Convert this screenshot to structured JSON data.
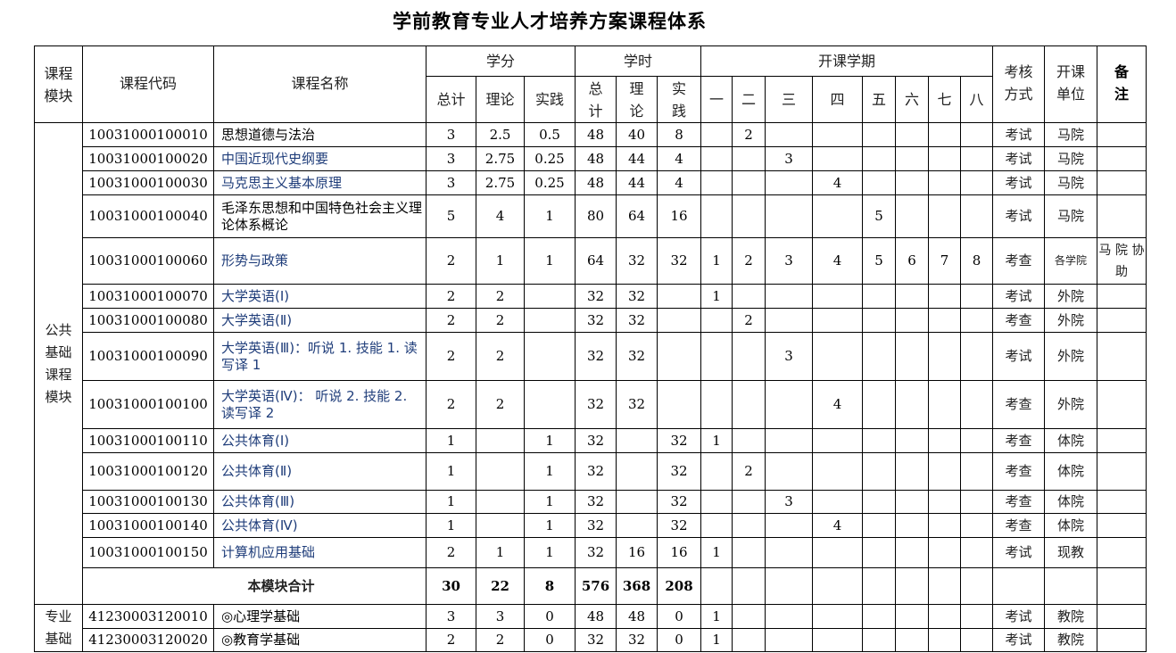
{
  "title": "学前教育专业人才培养方案课程体系",
  "header": {
    "module": "课程模块",
    "code": "课程代码",
    "name": "课程名称",
    "credits": "学分",
    "hours": "学时",
    "semester": "开课学期",
    "exam": "考核方式",
    "unit": "开课单位",
    "note": "备注",
    "credit_sub": [
      "总计",
      "理论",
      "实践"
    ],
    "hour_sub": [
      "总计",
      "理论",
      "实践"
    ],
    "semesters": [
      "一",
      "二",
      "三",
      "四",
      "五",
      "六",
      "七",
      "八"
    ]
  },
  "modules": [
    {
      "label": "公共基础课程模块",
      "rows": [
        {
          "code": "10031000100010",
          "name": "思想道德与法治",
          "credits": [
            "3",
            "2.5",
            "0.5"
          ],
          "hours": [
            "48",
            "40",
            "8"
          ],
          "sem": [
            "",
            "2",
            "",
            "",
            "",
            "",
            "",
            ""
          ],
          "exam": "考试",
          "unit": "马院",
          "note": ""
        },
        {
          "code": "10031000100020",
          "name": "中国近现代史纲要",
          "credits": [
            "3",
            "2.75",
            "0.25"
          ],
          "hours": [
            "48",
            "44",
            "4"
          ],
          "sem": [
            "",
            "",
            "3",
            "",
            "",
            "",
            "",
            ""
          ],
          "exam": "考试",
          "unit": "马院",
          "note": ""
        },
        {
          "code": "10031000100030",
          "name": "马克思主义基本原理",
          "credits": [
            "3",
            "2.75",
            "0.25"
          ],
          "hours": [
            "48",
            "44",
            "4"
          ],
          "sem": [
            "",
            "",
            "",
            "4",
            "",
            "",
            "",
            ""
          ],
          "exam": "考试",
          "unit": "马院",
          "note": ""
        },
        {
          "code": "10031000100040",
          "name": "毛泽东思想和中国特色社会主义理论体系概论",
          "credits": [
            "5",
            "4",
            "1"
          ],
          "hours": [
            "80",
            "64",
            "16"
          ],
          "sem": [
            "",
            "",
            "",
            "",
            "5",
            "",
            "",
            ""
          ],
          "exam": "考试",
          "unit": "马院",
          "note": ""
        },
        {
          "code": "10031000100060",
          "name": "形势与政策",
          "credits": [
            "2",
            "1",
            "1"
          ],
          "hours": [
            "64",
            "32",
            "32"
          ],
          "sem": [
            "1",
            "2",
            "3",
            "4",
            "5",
            "6",
            "7",
            "8"
          ],
          "exam": "考查",
          "unit": "各学院",
          "note": "马 院 协助"
        },
        {
          "code": "10031000100070",
          "name": "大学英语(Ⅰ)",
          "credits": [
            "2",
            "2",
            ""
          ],
          "hours": [
            "32",
            "32",
            ""
          ],
          "sem": [
            "1",
            "",
            "",
            "",
            "",
            "",
            "",
            ""
          ],
          "exam": "考试",
          "unit": "外院",
          "note": ""
        },
        {
          "code": "10031000100080",
          "name": "大学英语(Ⅱ)",
          "credits": [
            "2",
            "2",
            ""
          ],
          "hours": [
            "32",
            "32",
            ""
          ],
          "sem": [
            "",
            "2",
            "",
            "",
            "",
            "",
            "",
            ""
          ],
          "exam": "考查",
          "unit": "外院",
          "note": ""
        },
        {
          "code": "10031000100090",
          "name": "大学英语(Ⅲ)：听说 1. 技能 1. 读写译 1",
          "credits": [
            "2",
            "2",
            ""
          ],
          "hours": [
            "32",
            "32",
            ""
          ],
          "sem": [
            "",
            "",
            "3",
            "",
            "",
            "",
            "",
            ""
          ],
          "exam": "考试",
          "unit": "外院",
          "note": ""
        },
        {
          "code": "10031000100100",
          "name": "大学英语(Ⅳ)： 听说 2. 技能 2. 读写译 2",
          "credits": [
            "2",
            "2",
            ""
          ],
          "hours": [
            "32",
            "32",
            ""
          ],
          "sem": [
            "",
            "",
            "",
            "4",
            "",
            "",
            "",
            ""
          ],
          "exam": "考查",
          "unit": "外院",
          "note": ""
        },
        {
          "code": "10031000100110",
          "name": "公共体育(Ⅰ)",
          "credits": [
            "1",
            "",
            "1"
          ],
          "hours": [
            "32",
            "",
            "32"
          ],
          "sem": [
            "1",
            "",
            "",
            "",
            "",
            "",
            "",
            ""
          ],
          "exam": "考查",
          "unit": "体院",
          "note": ""
        },
        {
          "code": "10031000100120",
          "name": "公共体育(Ⅱ)",
          "credits": [
            "1",
            "",
            "1"
          ],
          "hours": [
            "32",
            "",
            "32"
          ],
          "sem": [
            "",
            "2",
            "",
            "",
            "",
            "",
            "",
            ""
          ],
          "exam": "考查",
          "unit": "体院",
          "note": ""
        },
        {
          "code": "10031000100130",
          "name": "公共体育(Ⅲ)",
          "credits": [
            "1",
            "",
            "1"
          ],
          "hours": [
            "32",
            "",
            "32"
          ],
          "sem": [
            "",
            "",
            "3",
            "",
            "",
            "",
            "",
            ""
          ],
          "exam": "考查",
          "unit": "体院",
          "note": ""
        },
        {
          "code": "10031000100140",
          "name": "公共体育(Ⅳ)",
          "credits": [
            "1",
            "",
            "1"
          ],
          "hours": [
            "32",
            "",
            "32"
          ],
          "sem": [
            "",
            "",
            "",
            "4",
            "",
            "",
            "",
            ""
          ],
          "exam": "考查",
          "unit": "体院",
          "note": ""
        },
        {
          "code": "10031000100150",
          "name": "计算机应用基础",
          "credits": [
            "2",
            "1",
            "1"
          ],
          "hours": [
            "32",
            "16",
            "16"
          ],
          "sem": [
            "1",
            "",
            "",
            "",
            "",
            "",
            "",
            ""
          ],
          "exam": "考试",
          "unit": "现教",
          "note": ""
        }
      ],
      "total": {
        "label": "本模块合计",
        "credits": [
          "30",
          "22",
          "8"
        ],
        "hours": [
          "576",
          "368",
          "208"
        ]
      }
    },
    {
      "label": "专业基础",
      "rows": [
        {
          "code": "41230003120010",
          "name": "◎心理学基础",
          "credits": [
            "3",
            "3",
            "0"
          ],
          "hours": [
            "48",
            "48",
            "0"
          ],
          "sem": [
            "1",
            "",
            "",
            "",
            "",
            "",
            "",
            ""
          ],
          "exam": "考试",
          "unit": "教院",
          "note": ""
        },
        {
          "code": "41230003120020",
          "name": "◎教育学基础",
          "credits": [
            "2",
            "2",
            "0"
          ],
          "hours": [
            "32",
            "32",
            "0"
          ],
          "sem": [
            "1",
            "",
            "",
            "",
            "",
            "",
            "",
            ""
          ],
          "exam": "考试",
          "unit": "教院",
          "note": ""
        }
      ]
    }
  ]
}
